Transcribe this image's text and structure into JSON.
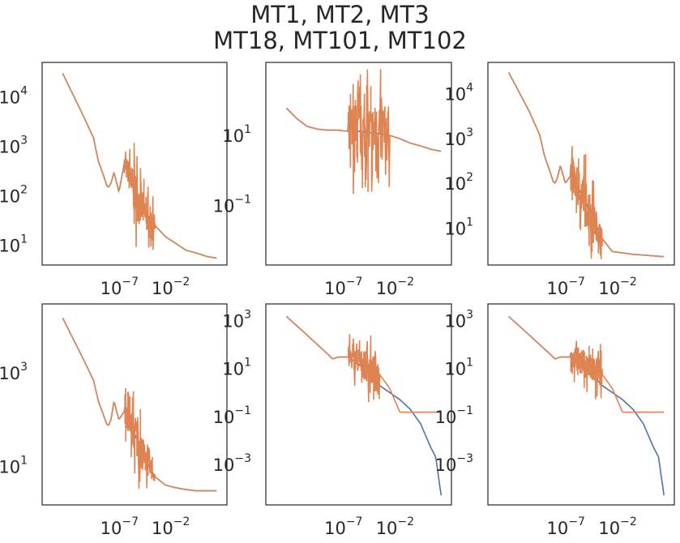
{
  "title": [
    "MT1, MT2, MT3",
    "MT18, MT101, MT102"
  ],
  "colors": {
    "series_1": "#4c72b0",
    "series_2": "#dd8452",
    "axes": "#262626"
  },
  "chart_data": [
    {
      "type": "line",
      "xscale": "log",
      "yscale": "log",
      "xlim": [
        1e-15,
        1000.0
      ],
      "ylim": [
        4,
        50000
      ],
      "grid": false,
      "xticks": [
        {
          "base": "10",
          "exp": "−7",
          "value": 1e-07
        },
        {
          "base": "10",
          "exp": "−2",
          "value": 0.01
        }
      ],
      "yticks": [
        {
          "base": "10",
          "exp": "1",
          "value": 10
        },
        {
          "base": "10",
          "exp": "2",
          "value": 100
        },
        {
          "base": "10",
          "exp": "3",
          "value": 1000
        },
        {
          "base": "10",
          "exp": "4",
          "value": 10000
        }
      ],
      "series": [
        {
          "x": [
            1e-13,
            1e-11,
            1e-10,
            3e-10,
            1e-09,
            2e-09,
            3e-09,
            5e-09,
            1e-08,
            3e-08,
            1e-07,
            3e-07,
            1e-06,
            1e-05,
            0.0001,
            0.001,
            0.01,
            0.1,
            1,
            10.0,
            100.0
          ],
          "y": [
            30000,
            4200,
            1500,
            500,
            250,
            160,
            150,
            180,
            300,
            120,
            450,
            260,
            120,
            45,
            25,
            15,
            11,
            8,
            7,
            6,
            5.5
          ]
        },
        {
          "x": [
            1e-13,
            1e-11,
            1e-10,
            3e-10,
            1e-09,
            2e-09,
            3e-09,
            5e-09,
            1e-08,
            3e-08,
            1e-07,
            3e-07,
            1e-06,
            1e-05,
            0.0001,
            0.001,
            0.01,
            0.1,
            1,
            10.0,
            100.0
          ],
          "y": [
            30000,
            4200,
            1500,
            500,
            250,
            160,
            150,
            180,
            300,
            120,
            450,
            260,
            120,
            45,
            25,
            15,
            11,
            8,
            7,
            6,
            5.5
          ],
          "noise": {
            "from": 1e-07,
            "to": 0.0001,
            "low": 8,
            "high": 1200
          }
        }
      ]
    },
    {
      "type": "line",
      "xscale": "log",
      "yscale": "log",
      "xlim": [
        1e-15,
        1000.0
      ],
      "ylim": [
        0.002,
        1200
      ],
      "grid": false,
      "xticks": [
        {
          "base": "10",
          "exp": "−7",
          "value": 1e-07
        },
        {
          "base": "10",
          "exp": "−2",
          "value": 0.01
        }
      ],
      "yticks": [
        {
          "base": "10",
          "exp": "−1",
          "value": 0.1
        },
        {
          "base": "10",
          "exp": "1",
          "value": 10
        }
      ],
      "series": [
        {
          "x": [
            1e-13,
            1e-12,
            1e-11,
            1e-10,
            1e-09,
            1e-08,
            1e-07,
            1e-06,
            1e-05,
            0.0001,
            0.001,
            0.01,
            0.1,
            1,
            10.0,
            100.0
          ],
          "y": [
            60,
            30,
            18,
            15,
            14,
            14,
            13,
            13,
            12,
            11,
            10,
            8,
            6,
            5,
            4,
            3.5
          ]
        },
        {
          "x": [
            1e-13,
            1e-12,
            1e-11,
            1e-10,
            1e-09,
            1e-08,
            1e-07,
            1e-06,
            1e-05,
            0.0001,
            0.001,
            0.01,
            0.1,
            1,
            10.0,
            100.0
          ],
          "y": [
            60,
            30,
            18,
            15,
            14,
            14,
            13,
            13,
            12,
            11,
            10,
            8,
            6,
            5,
            4,
            3.5
          ],
          "noise": {
            "from": 1e-07,
            "to": 0.001,
            "low": 0.003,
            "high": 800
          }
        }
      ]
    },
    {
      "type": "line",
      "xscale": "log",
      "yscale": "log",
      "xlim": [
        1e-15,
        1000.0
      ],
      "ylim": [
        1.5,
        50000
      ],
      "grid": false,
      "xticks": [
        {
          "base": "10",
          "exp": "−7",
          "value": 1e-07
        },
        {
          "base": "10",
          "exp": "−2",
          "value": 0.01
        }
      ],
      "yticks": [
        {
          "base": "10",
          "exp": "1",
          "value": 10
        },
        {
          "base": "10",
          "exp": "2",
          "value": 100
        },
        {
          "base": "10",
          "exp": "3",
          "value": 1000
        },
        {
          "base": "10",
          "exp": "4",
          "value": 10000
        }
      ],
      "series": [
        {
          "x": [
            1e-13,
            1e-11,
            1e-10,
            3e-10,
            1e-09,
            2e-09,
            3e-09,
            5e-09,
            1e-08,
            3e-08,
            1e-07,
            1e-06,
            1e-05,
            0.0001,
            0.001,
            0.01,
            0.1,
            1,
            10.0,
            100.0
          ],
          "y": [
            30000,
            4000,
            1200,
            400,
            180,
            110,
            100,
            130,
            250,
            100,
            150,
            60,
            20,
            6,
            3,
            2.8,
            2.6,
            2.5,
            2.4,
            2.3
          ]
        },
        {
          "x": [
            1e-13,
            1e-11,
            1e-10,
            3e-10,
            1e-09,
            2e-09,
            3e-09,
            5e-09,
            1e-08,
            3e-08,
            1e-07,
            1e-06,
            1e-05,
            0.0001,
            0.001,
            0.01,
            0.1,
            1,
            10.0,
            100.0
          ],
          "y": [
            30000,
            4000,
            1200,
            400,
            180,
            110,
            100,
            130,
            250,
            100,
            150,
            60,
            20,
            6,
            3,
            2.8,
            2.6,
            2.5,
            2.4,
            2.3
          ],
          "noise": {
            "from": 1e-07,
            "to": 0.0001,
            "low": 2,
            "high": 800
          }
        }
      ]
    },
    {
      "type": "line",
      "xscale": "log",
      "yscale": "log",
      "xlim": [
        1e-15,
        1000.0
      ],
      "ylim": [
        1.5,
        30000
      ],
      "grid": false,
      "xticks": [
        {
          "base": "10",
          "exp": "−7",
          "value": 1e-07
        },
        {
          "base": "10",
          "exp": "−2",
          "value": 0.01
        }
      ],
      "yticks": [
        {
          "base": "10",
          "exp": "1",
          "value": 10
        },
        {
          "base": "10",
          "exp": "3",
          "value": 1000
        }
      ],
      "series": [
        {
          "x": [
            1e-13,
            1e-11,
            1e-10,
            3e-10,
            1e-09,
            2e-09,
            3e-09,
            5e-09,
            1e-08,
            3e-08,
            1e-07,
            1e-06,
            1e-05,
            0.0001,
            0.001,
            0.01,
            0.1,
            1,
            10.0,
            100.0
          ],
          "y": [
            15000,
            2000,
            700,
            250,
            120,
            80,
            75,
            100,
            250,
            100,
            150,
            50,
            15,
            6,
            4,
            3.5,
            3.2,
            3,
            3,
            3
          ]
        },
        {
          "x": [
            1e-13,
            1e-11,
            1e-10,
            3e-10,
            1e-09,
            2e-09,
            3e-09,
            5e-09,
            1e-08,
            3e-08,
            1e-07,
            1e-06,
            1e-05,
            0.0001,
            0.001,
            0.01,
            0.1,
            1,
            10.0,
            100.0
          ],
          "y": [
            15000,
            2000,
            700,
            250,
            120,
            80,
            75,
            100,
            250,
            100,
            150,
            50,
            15,
            6,
            4,
            3.5,
            3.2,
            3,
            3,
            3
          ],
          "noise": {
            "from": 1e-07,
            "to": 0.0001,
            "low": 3,
            "high": 500
          }
        }
      ]
    },
    {
      "type": "line",
      "xscale": "log",
      "yscale": "log",
      "xlim": [
        1e-15,
        1000.0
      ],
      "ylim": [
        2e-05,
        5000
      ],
      "grid": false,
      "xticks": [
        {
          "base": "10",
          "exp": "−7",
          "value": 1e-07
        },
        {
          "base": "10",
          "exp": "−2",
          "value": 0.01
        }
      ],
      "yticks": [
        {
          "base": "10",
          "exp": "−3",
          "value": 0.001
        },
        {
          "base": "10",
          "exp": "−1",
          "value": 0.1
        },
        {
          "base": "10",
          "exp": "1",
          "value": 10
        },
        {
          "base": "10",
          "exp": "3",
          "value": 1000
        }
      ],
      "series": [
        {
          "x": [
            1e-13,
            1e-11,
            1e-10,
            1e-09,
            3e-09,
            1e-08,
            1e-07,
            1e-06,
            1e-05,
            0.0001,
            0.001,
            0.01,
            0.1,
            1,
            10.0,
            30.0,
            100.0
          ],
          "y": [
            1500,
            250,
            100,
            40,
            25,
            30,
            30,
            15,
            6,
            2,
            1,
            0.5,
            0.2,
            0.05,
            0.005,
            0.002,
            5e-05
          ]
        },
        {
          "x": [
            1e-13,
            1e-11,
            1e-10,
            1e-09,
            3e-09,
            1e-08,
            1e-07,
            1e-06,
            1e-05,
            0.0001,
            0.001,
            0.01,
            0.1,
            1,
            10.0,
            100.0
          ],
          "y": [
            1500,
            250,
            100,
            40,
            25,
            30,
            30,
            20,
            10,
            6,
            1.5,
            0.15,
            0.15,
            0.15,
            0.15,
            0.15
          ],
          "noise": {
            "from": 1e-07,
            "to": 0.0001,
            "low": 0.3,
            "high": 300
          }
        }
      ]
    },
    {
      "type": "line",
      "xscale": "log",
      "yscale": "log",
      "xlim": [
        1e-15,
        1000.0
      ],
      "ylim": [
        2e-05,
        5000
      ],
      "grid": false,
      "xticks": [
        {
          "base": "10",
          "exp": "−7",
          "value": 1e-07
        },
        {
          "base": "10",
          "exp": "−2",
          "value": 0.01
        }
      ],
      "yticks": [
        {
          "base": "10",
          "exp": "−3",
          "value": 0.001
        },
        {
          "base": "10",
          "exp": "−1",
          "value": 0.1
        },
        {
          "base": "10",
          "exp": "1",
          "value": 10
        },
        {
          "base": "10",
          "exp": "3",
          "value": 1000
        }
      ],
      "series": [
        {
          "x": [
            1e-13,
            1e-11,
            1e-10,
            1e-09,
            3e-09,
            1e-08,
            1e-07,
            1e-06,
            1e-05,
            0.0001,
            0.001,
            0.01,
            0.1,
            1,
            10.0,
            30.0,
            100.0
          ],
          "y": [
            1500,
            250,
            100,
            40,
            25,
            30,
            30,
            15,
            6,
            2,
            1,
            0.5,
            0.2,
            0.05,
            0.005,
            0.002,
            5e-05
          ]
        },
        {
          "x": [
            1e-13,
            1e-11,
            1e-10,
            1e-09,
            3e-09,
            1e-08,
            1e-07,
            1e-06,
            1e-05,
            0.0001,
            0.001,
            0.01,
            0.1,
            1,
            10.0,
            100.0
          ],
          "y": [
            1500,
            250,
            100,
            40,
            25,
            30,
            30,
            20,
            10,
            6,
            1.5,
            0.15,
            0.15,
            0.15,
            0.15,
            0.15
          ],
          "noise": {
            "from": 1e-07,
            "to": 0.0001,
            "low": 0.3,
            "high": 300
          }
        }
      ]
    }
  ]
}
